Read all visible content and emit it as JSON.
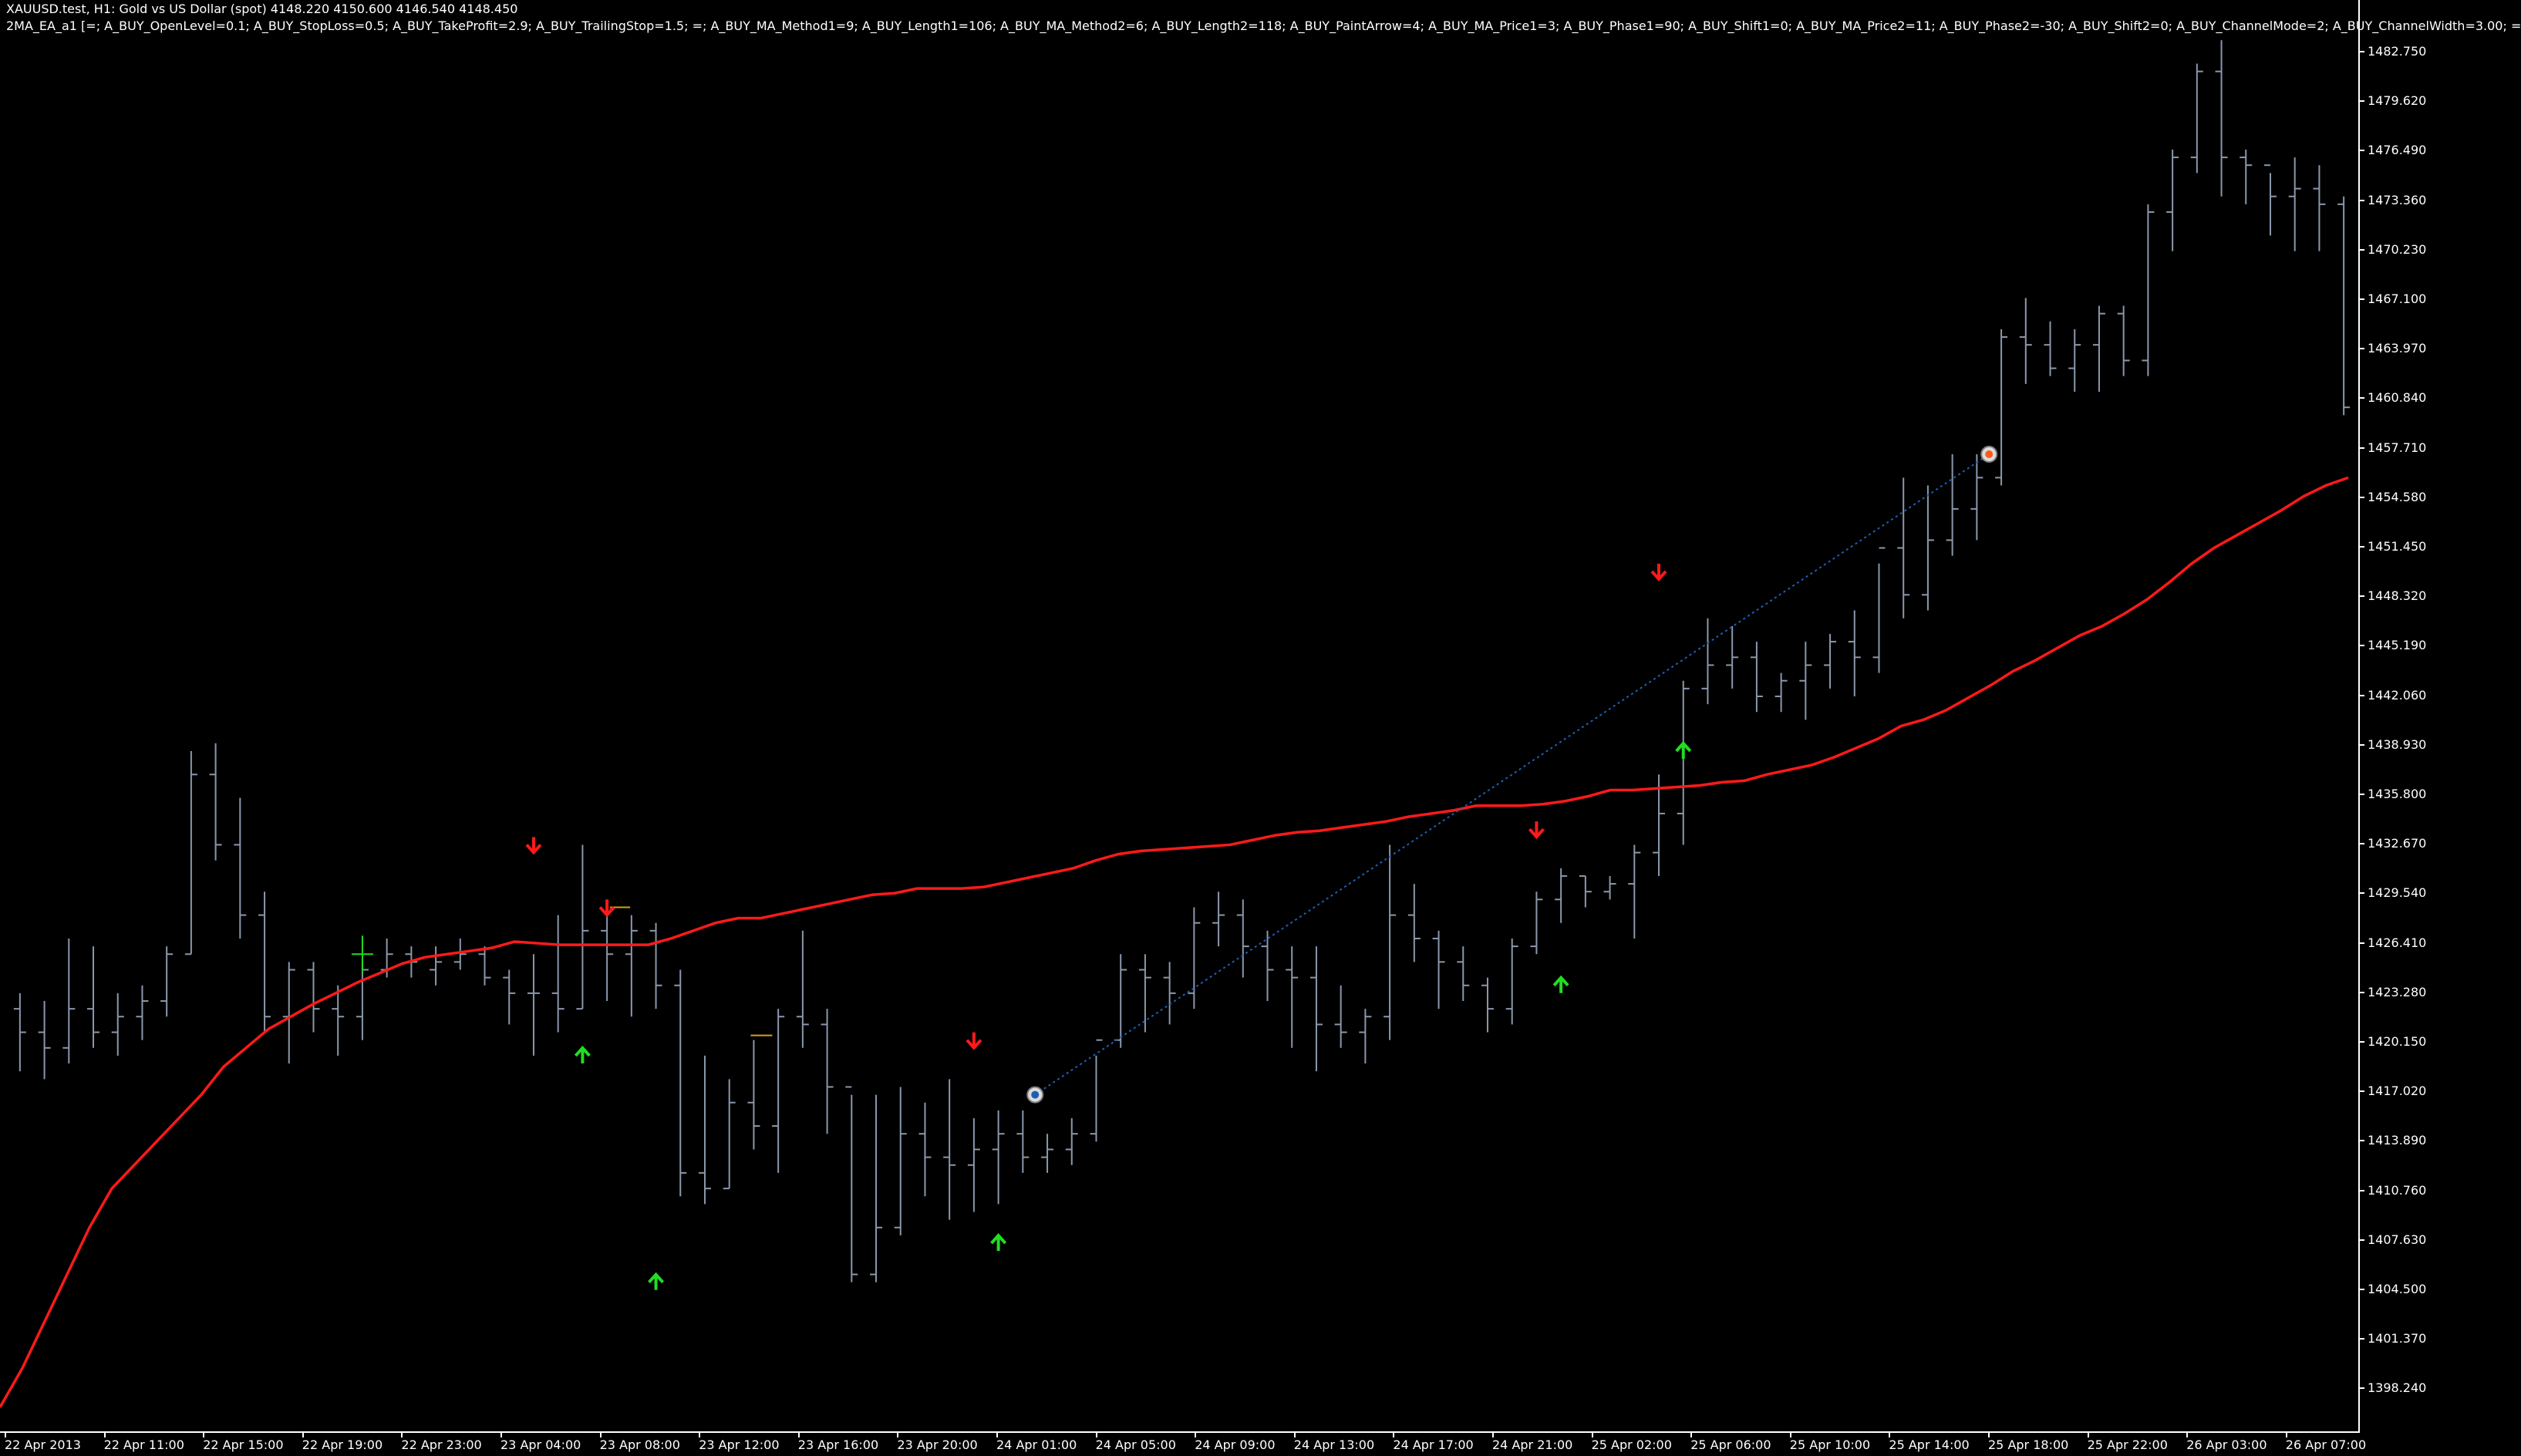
{
  "window": {
    "symbol_header": "XAUUSD.test, H1:  Gold vs US Dollar (spot)  4148.220 4150.600 4146.540 4148.450",
    "params_header": "2MA_EA_a1 [=; A_BUY_OpenLevel=0.1; A_BUY_StopLoss=0.5; A_BUY_TakeProfit=2.9; A_BUY_TrailingStop=1.5; =; A_BUY_MA_Method1=9; A_BUY_Length1=106; A_BUY_MA_Method2=6; A_BUY_Length2=118; A_BUY_PaintArrow=4; A_BUY_MA_Price1=3; A_BUY_Phase1=90; A_BUY_Shift1=0; A_BUY_MA_Price2=11; A_BUY_Phase2=-30; A_BUY_Shift2=0; A_BUY_ChannelMode=2; A_BUY_ChannelWidth=3.00; ="
  },
  "colors": {
    "background": "#000000",
    "bars": "#8a98ac",
    "moving_average": "#ff1a1a",
    "up_arrow": "#22dd22",
    "down_arrow": "#ff1a1a",
    "trade_line": "#1e5fb4",
    "axis_text": "#ffffff",
    "open_marker": "#1e5fb4",
    "close_marker": "#ff5a1e",
    "level_mark": "#d4a017",
    "cross_marker": "#22dd22"
  },
  "y_axis": {
    "labels": [
      "1482.750",
      "1479.620",
      "1476.490",
      "1473.360",
      "1470.230",
      "1467.100",
      "1463.970",
      "1460.840",
      "1457.710",
      "1454.580",
      "1451.450",
      "1448.320",
      "1445.190",
      "1442.060",
      "1438.930",
      "1435.800",
      "1432.670",
      "1429.540",
      "1426.410",
      "1423.280",
      "1420.150",
      "1417.020",
      "1413.890",
      "1410.760",
      "1407.630",
      "1404.500",
      "1401.370",
      "1398.240"
    ]
  },
  "x_axis": {
    "labels": [
      "22 Apr 2013",
      "22 Apr 11:00",
      "22 Apr 15:00",
      "22 Apr 19:00",
      "22 Apr 23:00",
      "23 Apr 04:00",
      "23 Apr 08:00",
      "23 Apr 12:00",
      "23 Apr 16:00",
      "23 Apr 20:00",
      "24 Apr 01:00",
      "24 Apr 05:00",
      "24 Apr 09:00",
      "24 Apr 13:00",
      "24 Apr 17:00",
      "24 Apr 21:00",
      "25 Apr 02:00",
      "25 Apr 06:00",
      "25 Apr 10:00",
      "25 Apr 14:00",
      "25 Apr 18:00",
      "25 Apr 22:00",
      "26 Apr 03:00",
      "26 Apr 07:00"
    ]
  },
  "chart_data": {
    "type": "ohlc",
    "ylim": [
      1396.0,
      1485.0
    ],
    "price_data": [
      [
        1422.5,
        1423.5,
        1418.5,
        1421.0
      ],
      [
        1421.0,
        1423.0,
        1418.0,
        1420.0
      ],
      [
        1420.0,
        1427.0,
        1419.0,
        1422.5
      ],
      [
        1422.5,
        1426.5,
        1420.0,
        1421.0
      ],
      [
        1421.0,
        1423.5,
        1419.5,
        1422.0
      ],
      [
        1422.0,
        1424.0,
        1420.5,
        1423.0
      ],
      [
        1423.0,
        1426.5,
        1422.0,
        1426.0
      ],
      [
        1426.0,
        1439.0,
        1426.0,
        1437.5
      ],
      [
        1437.5,
        1439.5,
        1432.0,
        1433.0
      ],
      [
        1433.0,
        1436.0,
        1427.0,
        1428.5
      ],
      [
        1428.5,
        1430.0,
        1421.0,
        1422.0
      ],
      [
        1422.0,
        1425.5,
        1419.0,
        1425.0
      ],
      [
        1425.0,
        1425.5,
        1421.0,
        1422.5
      ],
      [
        1422.5,
        1424.0,
        1419.5,
        1422.0
      ],
      [
        1422.0,
        1425.5,
        1420.5,
        1425.0
      ],
      [
        1425.0,
        1427.0,
        1424.5,
        1426.0
      ],
      [
        1426.0,
        1426.5,
        1424.5,
        1425.5
      ],
      [
        1425.0,
        1426.5,
        1424.0,
        1425.5
      ],
      [
        1425.5,
        1427.0,
        1425.0,
        1426.0
      ],
      [
        1426.0,
        1426.5,
        1424.0,
        1424.5
      ],
      [
        1424.5,
        1425.0,
        1421.5,
        1423.5
      ],
      [
        1423.5,
        1426.0,
        1419.5,
        1423.5
      ],
      [
        1423.5,
        1428.5,
        1421.0,
        1422.5
      ],
      [
        1422.5,
        1433.0,
        1422.5,
        1427.5
      ],
      [
        1427.5,
        1429.5,
        1423.0,
        1426.0
      ],
      [
        1426.0,
        1428.5,
        1422.0,
        1427.5
      ],
      [
        1427.5,
        1428.0,
        1422.5,
        1424.0
      ],
      [
        1424.0,
        1425.0,
        1410.5,
        1412.0
      ],
      [
        1412.0,
        1419.5,
        1410.0,
        1411.0
      ],
      [
        1411.0,
        1418.0,
        1411.0,
        1416.5
      ],
      [
        1416.5,
        1420.5,
        1413.5,
        1415.0
      ],
      [
        1415.0,
        1422.5,
        1412.0,
        1422.0
      ],
      [
        1422.0,
        1427.5,
        1420.0,
        1421.5
      ],
      [
        1421.5,
        1422.5,
        1414.5,
        1417.5
      ],
      [
        1417.5,
        1417.0,
        1405.0,
        1405.5
      ],
      [
        1405.5,
        1417.0,
        1405.0,
        1408.5
      ],
      [
        1408.5,
        1417.5,
        1408.0,
        1414.5
      ],
      [
        1414.5,
        1416.5,
        1410.5,
        1413.0
      ],
      [
        1413.0,
        1418.0,
        1409.0,
        1412.5
      ],
      [
        1412.5,
        1415.5,
        1409.5,
        1413.5
      ],
      [
        1413.5,
        1416.0,
        1410.0,
        1414.5
      ],
      [
        1414.5,
        1416.0,
        1412.0,
        1413.0
      ],
      [
        1413.0,
        1414.5,
        1412.0,
        1413.5
      ],
      [
        1413.5,
        1415.5,
        1412.5,
        1414.5
      ],
      [
        1414.5,
        1419.5,
        1414.0,
        1420.5
      ],
      [
        1420.5,
        1426.0,
        1420.0,
        1425.0
      ],
      [
        1425.0,
        1426.0,
        1421.0,
        1424.5
      ],
      [
        1424.5,
        1425.5,
        1421.5,
        1423.5
      ],
      [
        1423.5,
        1429.0,
        1422.5,
        1428.0
      ],
      [
        1428.0,
        1430.0,
        1426.5,
        1428.5
      ],
      [
        1428.5,
        1429.5,
        1424.5,
        1426.5
      ],
      [
        1426.5,
        1427.5,
        1423.0,
        1425.0
      ],
      [
        1425.0,
        1426.5,
        1420.0,
        1424.5
      ],
      [
        1424.5,
        1426.5,
        1418.5,
        1421.5
      ],
      [
        1421.5,
        1424.0,
        1420.0,
        1421.0
      ],
      [
        1421.0,
        1422.5,
        1419.0,
        1422.0
      ],
      [
        1422.0,
        1433.0,
        1420.5,
        1428.5
      ],
      [
        1428.5,
        1430.5,
        1425.5,
        1427.0
      ],
      [
        1427.0,
        1427.5,
        1422.5,
        1425.5
      ],
      [
        1425.5,
        1426.5,
        1423.0,
        1424.0
      ],
      [
        1424.0,
        1424.5,
        1421.0,
        1422.5
      ],
      [
        1422.5,
        1427.0,
        1421.5,
        1426.5
      ],
      [
        1426.5,
        1430.0,
        1426.0,
        1429.5
      ],
      [
        1429.5,
        1431.5,
        1428.0,
        1431.0
      ],
      [
        1431.0,
        1431.0,
        1429.0,
        1430.0
      ],
      [
        1430.0,
        1431.0,
        1429.5,
        1430.5
      ],
      [
        1430.5,
        1433.0,
        1427.0,
        1432.5
      ],
      [
        1432.5,
        1437.5,
        1431.0,
        1435.0
      ],
      [
        1435.0,
        1443.5,
        1433.0,
        1443.0
      ],
      [
        1443.0,
        1447.5,
        1442.0,
        1444.5
      ],
      [
        1444.5,
        1447.0,
        1443.0,
        1445.0
      ],
      [
        1445.0,
        1446.0,
        1441.5,
        1442.5
      ],
      [
        1442.5,
        1444.0,
        1441.5,
        1443.5
      ],
      [
        1443.5,
        1446.0,
        1441.0,
        1444.5
      ],
      [
        1444.5,
        1446.5,
        1443.0,
        1446.0
      ],
      [
        1446.0,
        1448.0,
        1442.5,
        1445.0
      ],
      [
        1445.0,
        1451.0,
        1444.0,
        1452.0
      ],
      [
        1452.0,
        1456.5,
        1447.5,
        1449.0
      ],
      [
        1449.0,
        1456.0,
        1448.0,
        1452.5
      ],
      [
        1452.5,
        1458.0,
        1451.5,
        1454.5
      ],
      [
        1454.5,
        1458.0,
        1452.5,
        1456.5
      ],
      [
        1456.5,
        1466.0,
        1456.0,
        1465.5
      ],
      [
        1465.5,
        1468.0,
        1462.5,
        1465.0
      ],
      [
        1465.0,
        1466.5,
        1463.0,
        1463.5
      ],
      [
        1463.5,
        1466.0,
        1462.0,
        1465.0
      ],
      [
        1465.0,
        1467.5,
        1462.0,
        1467.0
      ],
      [
        1467.0,
        1467.5,
        1463.0,
        1464.0
      ],
      [
        1464.0,
        1474.0,
        1463.0,
        1473.5
      ],
      [
        1473.5,
        1477.5,
        1471.0,
        1477.0
      ],
      [
        1477.0,
        1483.0,
        1476.0,
        1482.5
      ],
      [
        1482.5,
        1484.5,
        1474.5,
        1477.0
      ],
      [
        1477.0,
        1477.5,
        1474.0,
        1476.5
      ],
      [
        1476.5,
        1476.0,
        1472.0,
        1474.5
      ],
      [
        1474.5,
        1477.0,
        1471.0,
        1475.0
      ],
      [
        1475.0,
        1476.5,
        1471.0,
        1474.0
      ],
      [
        1474.0,
        1474.5,
        1460.5,
        1461.0
      ]
    ],
    "ma": [
      1397.0,
      1399.5,
      1402.5,
      1405.5,
      1408.5,
      1411.0,
      1412.5,
      1414.0,
      1415.5,
      1417.0,
      1418.8,
      1420.0,
      1421.2,
      1422.0,
      1422.8,
      1423.5,
      1424.2,
      1424.8,
      1425.4,
      1425.8,
      1426.0,
      1426.2,
      1426.4,
      1426.8,
      1426.7,
      1426.6,
      1426.6,
      1426.6,
      1426.6,
      1426.6,
      1427.0,
      1427.5,
      1428.0,
      1428.3,
      1428.3,
      1428.6,
      1428.9,
      1429.2,
      1429.5,
      1429.8,
      1429.9,
      1430.2,
      1430.2,
      1430.2,
      1430.3,
      1430.6,
      1430.9,
      1431.2,
      1431.5,
      1432.0,
      1432.4,
      1432.6,
      1432.7,
      1432.8,
      1432.9,
      1433.0,
      1433.3,
      1433.6,
      1433.8,
      1433.9,
      1434.1,
      1434.3,
      1434.5,
      1434.8,
      1435.0,
      1435.2,
      1435.5,
      1435.5,
      1435.5,
      1435.6,
      1435.8,
      1436.1,
      1436.5,
      1436.5,
      1436.6,
      1436.7,
      1436.8,
      1437.0,
      1437.1,
      1437.5,
      1437.8,
      1438.1,
      1438.6,
      1439.2,
      1439.8,
      1440.6,
      1441.0,
      1441.6,
      1442.4,
      1443.2,
      1444.1,
      1444.8,
      1445.6,
      1446.4,
      1447.0,
      1447.8,
      1448.7,
      1449.8,
      1451.0,
      1452.0,
      1452.8,
      1453.6,
      1454.4,
      1455.3,
      1456.0,
      1456.5
    ],
    "up_arrows": [
      [
        23,
        1419.5
      ],
      [
        26,
        1405.0
      ],
      [
        40,
        1407.5
      ],
      [
        63,
        1424.0
      ],
      [
        68,
        1439.0
      ]
    ],
    "down_arrows": [
      [
        21,
        1433.0
      ],
      [
        24,
        1429.0
      ],
      [
        39,
        1420.5
      ],
      [
        62,
        1434.0
      ],
      [
        67,
        1450.5
      ]
    ],
    "trade_open": [
      41.5,
      1417.0
    ],
    "trade_close": [
      80.5,
      1458.0
    ]
  }
}
